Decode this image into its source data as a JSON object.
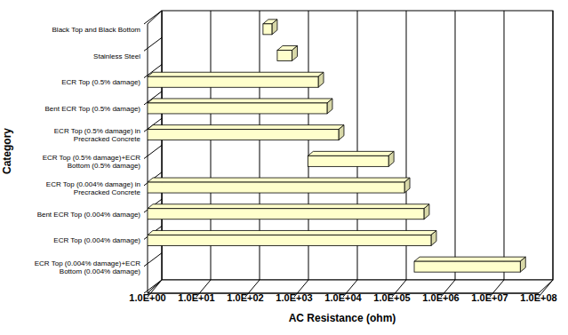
{
  "chart_data": {
    "type": "bar",
    "orientation": "horizontal",
    "log": "x",
    "grid": true,
    "color": "#ffffcc",
    "xlabel": "AC Resistance (ohm)",
    "ylabel": "Category",
    "categories": [
      "Black Top and Black Bottom",
      "Stainless Steel",
      "ECR Top (0.5% damage)",
      "Bent ECR Top (0.5% damage)",
      "ECR Top (0.5% damage) in\nPrecracked Concrete",
      "ECR Top (0.5% damage)+ECR\nBottom (0.5% damage)",
      "ECR Top (0.004% damage) in\nPrecracked Concrete",
      "Bent ECR Top (0.004% damage)",
      "ECR Top (0.004% damage)",
      "ECR Top (0.004% damage)+ECR\nBottom (0.004% damage)"
    ],
    "values": [
      [
        230,
        350
      ],
      [
        450,
        900
      ],
      [
        1,
        3100
      ],
      [
        1,
        4700
      ],
      [
        1,
        8100
      ],
      [
        1900,
        85000
      ],
      [
        1,
        180000
      ],
      [
        1,
        450000
      ],
      [
        1,
        630000
      ],
      [
        285000,
        42000000
      ]
    ],
    "xlim": [
      1,
      100000000
    ],
    "xticks": [
      {
        "value": 1,
        "label": "1.0E+00"
      },
      {
        "value": 10,
        "label": "1.0E+01"
      },
      {
        "value": 100,
        "label": "1.0E+02"
      },
      {
        "value": 1000,
        "label": "1.0E+03"
      },
      {
        "value": 10000,
        "label": "1.0E+04"
      },
      {
        "value": 100000,
        "label": "1.0E+05"
      },
      {
        "value": 1000000,
        "label": "1.0E+06"
      },
      {
        "value": 10000000,
        "label": "1.0E+07"
      },
      {
        "value": 100000000,
        "label": "1.0E+08"
      }
    ]
  }
}
